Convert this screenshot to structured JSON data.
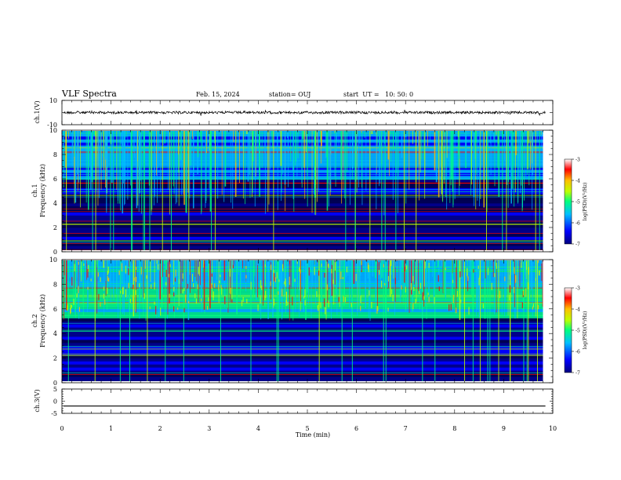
{
  "header": {
    "title": "VLF Spectra",
    "date": "Feb. 15, 2024",
    "station": "station= OUJ",
    "start": "start  UT =   10: 50: 0"
  },
  "chart_data": [
    {
      "type": "line",
      "panel": "ch1-waveform",
      "ylabel": "ch.1(V)",
      "ylim": [
        -10,
        10
      ],
      "yticks": [
        "10",
        "-10"
      ],
      "trace_level": 0,
      "xlim": [
        0,
        10
      ]
    },
    {
      "type": "heatmap",
      "panel": "ch1-spectrogram",
      "ylabel": "ch.1\nFrequency (kHz)",
      "ylabel_line1": "ch.1",
      "ylabel_line2": "Frequency (kHz)",
      "ylim": [
        0,
        10
      ],
      "yticks": [
        "0",
        "2",
        "4",
        "6",
        "8",
        "10"
      ],
      "xlim": [
        0,
        9.8
      ],
      "colorbar": {
        "label": "log(PSD)(V²/Hz)",
        "range": [
          -7,
          -3
        ],
        "ticks": [
          "-3",
          "-4",
          "-5",
          "-6",
          "-7"
        ]
      },
      "colormap": [
        "#00007f",
        "#0000ff",
        "#00bfff",
        "#00ff7f",
        "#bfff00",
        "#ffbf00",
        "#ff0000",
        "#ffffff"
      ]
    },
    {
      "type": "heatmap",
      "panel": "ch2-spectrogram",
      "ylabel_line1": "ch.2",
      "ylabel_line2": "Frequency (kHz)",
      "ylim": [
        0,
        10
      ],
      "yticks": [
        "0",
        "2",
        "4",
        "6",
        "8",
        "10"
      ],
      "xlim": [
        0,
        9.8
      ],
      "colorbar": {
        "label": "log(PSD)(V²/Hz)",
        "range": [
          -7,
          -3
        ],
        "ticks": [
          "-3",
          "-4",
          "-5",
          "-6",
          "-7"
        ]
      }
    },
    {
      "type": "line",
      "panel": "ch3-waveform",
      "ylabel": "ch.3(V)",
      "ylim": [
        -5,
        5
      ],
      "yticks": [
        "5",
        "0",
        "-5"
      ],
      "trace_level": -2,
      "xlim": [
        0,
        10
      ]
    }
  ],
  "xaxis": {
    "label": "Time (min)",
    "ticks": [
      "0",
      "1",
      "2",
      "3",
      "4",
      "5",
      "6",
      "7",
      "8",
      "9",
      "10"
    ],
    "range": [
      0,
      10
    ]
  }
}
